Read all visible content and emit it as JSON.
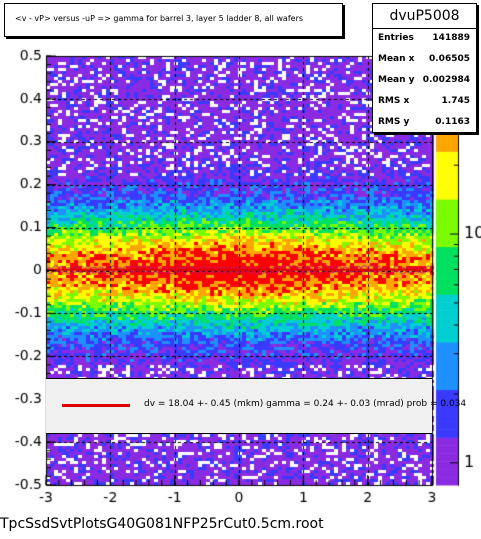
{
  "chart_data": {
    "type": "heatmap",
    "title": "<v - vP>      versus  -uP =>  gamma for barrel 3, layer 5 ladder 8, all wafers",
    "x_ticks": [
      "-3",
      "-2",
      "-1",
      "0",
      "1",
      "2",
      "3"
    ],
    "y_ticks": [
      "-0.5",
      "-0.4",
      "-0.3",
      "-0.2",
      "-0.1",
      "0",
      "0.1",
      "0.2",
      "0.3",
      "0.4",
      "0.5"
    ],
    "z_ticks": [
      "1",
      "10"
    ],
    "xlim": [
      -3,
      3
    ],
    "ylim": [
      -0.5,
      0.5
    ],
    "zlim": [
      0.8,
      60
    ],
    "z_scale": "log",
    "grid": true,
    "profile_y": 0.002,
    "density_sigma": 0.09,
    "palette": [
      "#8a2be2",
      "#3a3aff",
      "#1e90ff",
      "#00ced1",
      "#00e060",
      "#7cfc00",
      "#ffff00",
      "#ffa500",
      "#ff0000"
    ],
    "stats": {
      "name": "dvuP5008",
      "rows": [
        {
          "label": "Entries",
          "value": "141889"
        },
        {
          "label": "Mean x",
          "value": "0.06505"
        },
        {
          "label": "Mean y",
          "value": "0.002984"
        },
        {
          "label": "RMS x",
          "value": "1.745"
        },
        {
          "label": "RMS y",
          "value": "0.1163"
        }
      ]
    },
    "fit": {
      "text": "dv =   18.04 +-  0.45 (mkm) gamma =    0.24 +-  0.03 (mrad) prob = 0.034",
      "line_color": "#dd0000"
    },
    "footer": "TpcSsdSvtPlotsG40G081NFP25rCut0.5cm.root"
  }
}
